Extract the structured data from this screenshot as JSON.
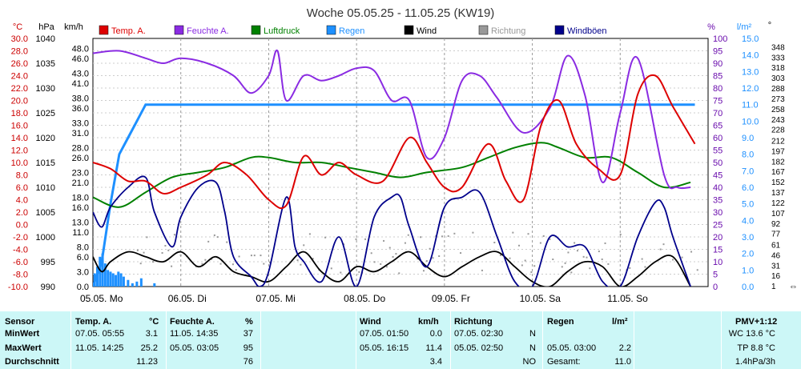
{
  "chart_data": {
    "type": "line",
    "title": "Woche 05.05.25 - 11.05.25 (KW19)",
    "x_day_labels": [
      "05.05.  Mo",
      "06.05.  Di",
      "07.05.  Mi",
      "08.05.  Do",
      "09.05.  Fr",
      "10.05.  Sa",
      "11.05.  So"
    ],
    "axis_units": {
      "temp": "°C",
      "pressure": "hPa",
      "wind": "km/h",
      "humidity": "%",
      "rain": "l/m²",
      "direction": "°"
    },
    "axes": {
      "temp": {
        "min": -10,
        "max": 30,
        "ticks": [
          "30.0",
          "28.0",
          "26.0",
          "24.0",
          "22.0",
          "20.0",
          "18.0",
          "16.0",
          "14.0",
          "12.0",
          "10.0",
          "8.0",
          "6.0",
          "4.0",
          "2.0",
          "0.0",
          "-2.0",
          "-4.0",
          "-6.0",
          "-8.0",
          "-10.0"
        ],
        "color": "#cc0000"
      },
      "pressure": {
        "min": 990,
        "max": 1040,
        "ticks": [
          "1040",
          "1035",
          "1030",
          "1025",
          "1020",
          "1015",
          "1010",
          "1005",
          "1000",
          "995",
          "990"
        ],
        "color": "#000000"
      },
      "wind": {
        "ticks": [
          [
            "48.0",
            48
          ],
          [
            "46.0",
            46
          ],
          [
            "43.0",
            43
          ],
          [
            "41.0",
            41
          ],
          [
            "38.0",
            38
          ],
          [
            "36.0",
            36
          ],
          [
            "33.0",
            33
          ],
          [
            "31.0",
            31
          ],
          [
            "28.0",
            28
          ],
          [
            "26.0",
            26
          ],
          [
            "23.0",
            23
          ],
          [
            "21.0",
            21
          ],
          [
            "18.0",
            18
          ],
          [
            "16.0",
            16
          ],
          [
            "13.0",
            13
          ],
          [
            "11.0",
            11
          ],
          [
            "8.0",
            8
          ],
          [
            "6.0",
            6
          ],
          [
            "3.0",
            3
          ],
          [
            "0.0",
            0
          ]
        ],
        "min": 0,
        "max": 50,
        "color": "#000000"
      },
      "humidity": {
        "min": 0,
        "max": 100,
        "ticks": [
          "100",
          "95",
          "90",
          "85",
          "80",
          "75",
          "70",
          "65",
          "60",
          "55",
          "50",
          "45",
          "40",
          "35",
          "30",
          "25",
          "20",
          "15",
          "10",
          "5",
          "0"
        ],
        "color": "#6a0dad"
      },
      "rain": {
        "min": 0,
        "max": 15,
        "ticks": [
          "15.0",
          "14.0",
          "13.0",
          "12.0",
          "11.0",
          "10.0",
          "9.0",
          "8.0",
          "7.0",
          "6.0",
          "5.0",
          "4.0",
          "3.0",
          "2.0",
          "1.0",
          "0.0"
        ],
        "color": "#1e90ff"
      },
      "direction": {
        "min": 0,
        "max": 360,
        "ticks": [
          [
            "348",
            348
          ],
          [
            "333",
            333
          ],
          [
            "318",
            318
          ],
          [
            "303",
            303
          ],
          [
            "288",
            288
          ],
          [
            "273",
            273
          ],
          [
            "258",
            258
          ],
          [
            "243",
            243
          ],
          [
            "228",
            228
          ],
          [
            "212",
            212
          ],
          [
            "197",
            197
          ],
          [
            "182",
            182
          ],
          [
            "167",
            167
          ],
          [
            "152",
            152
          ],
          [
            "137",
            137
          ],
          [
            "122",
            122
          ],
          [
            "107",
            107
          ],
          [
            "92",
            92
          ],
          [
            "77",
            77
          ],
          [
            "61",
            61
          ],
          [
            "46",
            46
          ],
          [
            "31",
            31
          ],
          [
            "16",
            16
          ],
          [
            "1",
            1
          ]
        ],
        "color": "#000000"
      }
    },
    "legend": [
      {
        "label": "Temp. A.",
        "color": "#dd0000"
      },
      {
        "label": "Feuchte A.",
        "color": "#8a2be2"
      },
      {
        "label": "Luftdruck",
        "color": "#008000"
      },
      {
        "label": "Regen",
        "color": "#1e90ff"
      },
      {
        "label": "Wind",
        "color": "#000000"
      },
      {
        "label": "Richtung",
        "color": "#999999"
      },
      {
        "label": "Windböen",
        "color": "#00008b"
      }
    ],
    "grid": true,
    "series": [
      {
        "name": "Temp. A.",
        "axis": "temp",
        "color": "#dd0000",
        "t": [
          0,
          0.2,
          0.4,
          0.6,
          0.8,
          1.0,
          1.3,
          1.5,
          1.75,
          2.0,
          2.2,
          2.4,
          2.6,
          2.8,
          3.0,
          3.3,
          3.6,
          3.8,
          4.0,
          4.2,
          4.5,
          4.7,
          4.9,
          5.1,
          5.3,
          5.5,
          5.75,
          6.0,
          6.2,
          6.4,
          6.6,
          6.85
        ],
        "v": [
          10,
          9,
          7,
          7,
          5,
          6,
          8,
          10,
          8,
          4,
          3.1,
          11,
          8,
          10,
          8,
          7,
          14,
          10,
          6,
          6,
          13,
          7,
          4,
          16,
          20,
          13,
          9,
          8,
          21,
          24,
          19,
          13
        ]
      },
      {
        "name": "Feuchte A.",
        "axis": "humidity",
        "color": "#8a2be2",
        "t": [
          0,
          0.3,
          0.6,
          0.8,
          1.0,
          1.3,
          1.6,
          1.8,
          2.0,
          2.1,
          2.2,
          2.4,
          2.6,
          2.8,
          3.0,
          3.2,
          3.4,
          3.6,
          3.8,
          4.0,
          4.2,
          4.4,
          4.6,
          4.9,
          5.2,
          5.4,
          5.6,
          5.8,
          6.0,
          6.2,
          6.5,
          6.65,
          6.8
        ],
        "v": [
          94,
          95,
          92,
          90,
          92,
          90,
          85,
          78,
          85,
          95,
          75,
          85,
          83,
          85,
          88,
          87,
          75,
          75,
          52,
          60,
          83,
          85,
          76,
          62,
          72,
          93,
          77,
          42,
          70,
          92,
          45,
          40,
          40
        ]
      },
      {
        "name": "Luftdruck",
        "axis": "pressure",
        "color": "#008000",
        "t": [
          0,
          0.3,
          0.6,
          0.9,
          1.2,
          1.5,
          1.8,
          2.0,
          2.3,
          2.6,
          2.9,
          3.2,
          3.5,
          3.8,
          4.2,
          4.5,
          4.8,
          5.1,
          5.3,
          5.6,
          5.9,
          6.2,
          6.5,
          6.8
        ],
        "v": [
          1008,
          1006,
          1009,
          1012,
          1013,
          1014,
          1016,
          1016,
          1015,
          1015,
          1014,
          1013,
          1012,
          1013,
          1014,
          1016,
          1018,
          1019,
          1018,
          1016,
          1016,
          1013,
          1010,
          1011
        ]
      },
      {
        "name": "Wind",
        "axis": "wind",
        "color": "#000000",
        "t": [
          0,
          0.1,
          0.2,
          0.4,
          0.6,
          0.8,
          1.0,
          1.2,
          1.4,
          1.6,
          1.8,
          2.0,
          2.2,
          2.4,
          2.6,
          2.8,
          3.0,
          3.2,
          3.4,
          3.6,
          3.8,
          4.0,
          4.2,
          4.4,
          4.6,
          4.8,
          5.0,
          5.2,
          5.4,
          5.6,
          5.8,
          6.0,
          6.2,
          6.4,
          6.6,
          6.8
        ],
        "v": [
          6,
          3,
          5,
          7,
          6,
          5,
          7,
          4,
          6,
          3,
          2,
          1,
          4,
          7,
          3,
          1,
          4,
          3,
          5,
          7,
          4,
          2,
          4,
          6,
          7,
          4,
          1,
          0,
          3,
          5,
          4,
          0,
          2,
          5,
          6,
          0
        ]
      },
      {
        "name": "Windböen",
        "axis": "wind",
        "color": "#00008b",
        "t": [
          0,
          0.1,
          0.2,
          0.4,
          0.6,
          0.7,
          0.9,
          1.0,
          1.2,
          1.4,
          1.5,
          1.6,
          1.8,
          1.9,
          2.0,
          2.2,
          2.3,
          2.4,
          2.6,
          2.8,
          3.0,
          3.2,
          3.4,
          3.5,
          3.6,
          3.8,
          4.0,
          4.2,
          4.4,
          4.6,
          4.8,
          5.0,
          5.2,
          5.4,
          5.6,
          5.8,
          6.0,
          6.2,
          6.4,
          6.5,
          6.6,
          6.8
        ],
        "v": [
          15,
          12,
          16,
          20,
          22,
          15,
          8,
          14,
          20,
          21,
          15,
          6,
          2,
          0,
          3,
          18,
          8,
          5,
          1,
          10,
          0,
          14,
          18,
          18,
          12,
          4,
          16,
          18,
          19,
          10,
          1,
          0,
          10,
          8,
          8,
          1,
          0,
          10,
          17,
          16,
          10,
          0
        ]
      },
      {
        "name": "Regen",
        "axis": "rain",
        "color": "#1e90ff",
        "t": [
          0,
          0.1,
          0.2,
          0.3,
          0.4,
          0.5,
          0.6,
          0.7,
          6.85
        ],
        "v": [
          0,
          1.5,
          5,
          8,
          9.0,
          10,
          11,
          11,
          11
        ]
      }
    ],
    "rain_bars": {
      "axis": "rain",
      "t": [
        0.02,
        0.05,
        0.08,
        0.11,
        0.14,
        0.17,
        0.2,
        0.23,
        0.26,
        0.29,
        0.32,
        0.35,
        0.4,
        0.45,
        0.5,
        0.55,
        0.7
      ],
      "v": [
        0.8,
        1.2,
        1.8,
        2.0,
        1.4,
        1.0,
        0.9,
        0.8,
        0.7,
        0.9,
        0.8,
        0.6,
        0.4,
        0.2,
        0.3,
        0.5,
        0.2
      ]
    }
  },
  "table": {
    "headers": {
      "sensor": "Sensor",
      "temp": "Temp. A.",
      "temp_unit": "°C",
      "hum": "Feuchte A.",
      "hum_unit": "%",
      "wind": "Wind",
      "wind_unit": "km/h",
      "dir": "Richtung",
      "rain": "Regen",
      "rain_unit": "l/m²",
      "pmv": "PMV+1:12"
    },
    "rows": [
      {
        "label": "MinWert",
        "t_time": "07.05.  05:55",
        "t_val": "3.1",
        "h_time": "11.05.  14:35",
        "h_val": "37",
        "w_time": "07.05.  01:50",
        "w_val": "0.0",
        "d_time": "07.05.  02:30",
        "d_val": "N",
        "r_time": "",
        "r_val": "",
        "right": "WC 13.6 °C"
      },
      {
        "label": "MaxWert",
        "t_time": "11.05.  14:25",
        "t_val": "25.2",
        "h_time": "05.05.  03:05",
        "h_val": "95",
        "w_time": "05.05.  16:15",
        "w_val": "11.4",
        "d_time": "05.05.  02:50",
        "d_val": "N",
        "r_time": "05.05.  03:00",
        "r_val": "2.2",
        "right": "TP 8.8 °C"
      },
      {
        "label": "Durchschnitt",
        "t_time": "",
        "t_val": "11.23",
        "h_time": "",
        "h_val": "76",
        "w_time": "",
        "w_val": "3.4",
        "d_time": "",
        "d_val": "NO",
        "r_time": "Gesamt:",
        "r_val": "11.0",
        "right": "1.4hPa/3h"
      }
    ]
  }
}
